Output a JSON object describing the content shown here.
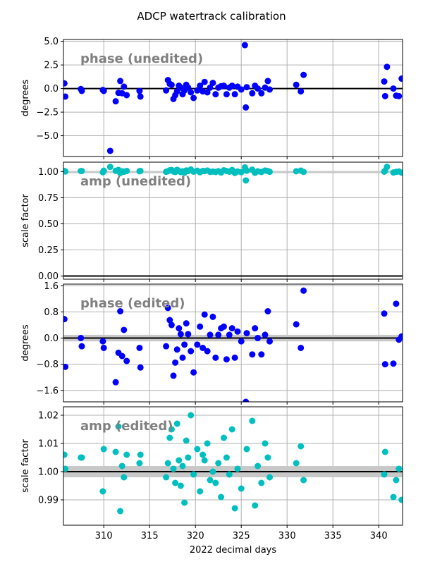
{
  "title": "ADCP watertrack calibration",
  "colors": {
    "phase_points": "#0000ff",
    "amp_points": "#00bfbf",
    "reference_line": "#000000",
    "band": "#c8c8c8",
    "grid": "#b0b0b0",
    "note": "#808080"
  },
  "chart_data": [
    {
      "type": "scatter",
      "annotation": "phase (unedited)",
      "ylabel": "degrees",
      "xlim": [
        305.6,
        342.6
      ],
      "ylim": [
        -7.2,
        5.2
      ],
      "xticks": [
        310,
        315,
        320,
        325,
        330,
        335,
        340
      ],
      "yticks": [
        5.0,
        2.5,
        0.0,
        -2.5,
        -5.0
      ],
      "ytick_labels": [
        "5.0",
        "2.5",
        "0.0",
        "−2.5",
        "−5.0"
      ],
      "grid": true,
      "reference_line": 0.0,
      "band": null,
      "point_color": "phase_points",
      "series": [
        {
          "x": [
            305.7,
            305.8,
            307.5,
            307.6,
            309.9,
            310.0,
            310.7,
            311.3,
            311.6,
            311.8,
            312.0,
            312.2,
            312.5,
            313.9,
            314.0,
            316.8,
            317.0,
            317.2,
            317.4,
            317.6,
            317.8,
            318.0,
            318.2,
            318.4,
            318.6,
            318.8,
            319.0,
            319.2,
            319.5,
            319.8,
            320.2,
            320.5,
            320.8,
            321.0,
            321.3,
            321.6,
            321.9,
            322.2,
            322.5,
            322.8,
            323.1,
            323.4,
            323.7,
            324.0,
            324.3,
            324.6,
            325.0,
            325.4,
            325.5,
            325.6,
            326.2,
            326.5,
            326.8,
            327.2,
            327.6,
            327.9,
            328.1,
            331.0,
            331.5,
            331.8,
            340.6,
            340.7,
            340.9,
            341.6,
            341.9,
            342.2,
            342.5
          ],
          "y": [
            0.55,
            -0.85,
            -0.05,
            -0.25,
            -0.15,
            -0.25,
            -6.6,
            -1.35,
            -0.45,
            0.8,
            -0.5,
            0.2,
            -0.7,
            -0.25,
            -0.85,
            -0.2,
            0.9,
            0.5,
            0.4,
            -1.1,
            -0.7,
            -0.3,
            0.3,
            0.1,
            -0.6,
            -0.2,
            0.4,
            0.1,
            -0.4,
            -1.0,
            -0.2,
            0.3,
            -0.3,
            0.7,
            -0.4,
            0.1,
            0.6,
            -0.6,
            0.1,
            0.25,
            0.3,
            -0.6,
            0.1,
            0.3,
            -0.6,
            0.2,
            -0.1,
            4.6,
            -2.0,
            0.15,
            -0.5,
            0.3,
            0.0,
            -0.5,
            0.1,
            0.8,
            -0.1,
            0.4,
            -0.3,
            1.45,
            0.75,
            -0.8,
            2.3,
            0.0,
            -0.75,
            -0.8,
            1.05
          ]
        }
      ]
    },
    {
      "type": "scatter",
      "annotation": "amp (unedited)",
      "ylabel": "scale factor",
      "xlim": [
        305.6,
        342.6
      ],
      "ylim": [
        -0.03,
        1.09
      ],
      "xticks": [
        310,
        315,
        320,
        325,
        330,
        335,
        340
      ],
      "yticks": [
        1.0,
        0.75,
        0.5,
        0.25,
        0.0
      ],
      "ytick_labels": [
        "1.00",
        "0.75",
        "0.50",
        "0.25",
        "0.00"
      ],
      "grid": true,
      "reference_line": 0.0,
      "band": [
        0.995,
        1.005
      ],
      "point_color": "amp_points",
      "series": [
        {
          "x": [
            305.7,
            305.8,
            307.5,
            307.6,
            309.9,
            310.0,
            310.7,
            311.3,
            311.6,
            311.8,
            312.0,
            312.2,
            312.5,
            313.9,
            314.0,
            316.8,
            317.0,
            317.2,
            317.4,
            317.6,
            317.8,
            318.0,
            318.2,
            318.4,
            318.6,
            318.8,
            319.0,
            319.2,
            319.5,
            319.8,
            320.2,
            320.5,
            320.8,
            321.0,
            321.3,
            321.6,
            321.9,
            322.2,
            322.5,
            322.8,
            323.1,
            323.4,
            323.7,
            324.0,
            324.3,
            324.6,
            325.0,
            325.4,
            325.5,
            325.6,
            326.2,
            326.5,
            326.8,
            327.2,
            327.6,
            327.9,
            328.1,
            331.0,
            331.5,
            331.8,
            340.6,
            340.7,
            340.9,
            341.6,
            341.9,
            342.2,
            342.5
          ],
          "y": [
            1.006,
            1.001,
            1.005,
            1.005,
            0.993,
            1.008,
            1.045,
            1.007,
            1.016,
            0.986,
            1.002,
            0.998,
            1.006,
            1.003,
            1.006,
            0.998,
            1.003,
            1.012,
            1.015,
            1.001,
            0.996,
            1.017,
            1.004,
            0.995,
            1.002,
            0.989,
            1.011,
            1.005,
            1.02,
            0.999,
            1.008,
            0.993,
            1.006,
            1.004,
            1.01,
            0.997,
            1.0,
            0.996,
            1.003,
            0.991,
            1.012,
            1.005,
            0.999,
            1.015,
            0.987,
            1.001,
            0.994,
            1.04,
            0.915,
            1.008,
            1.018,
            0.988,
            1.002,
            0.996,
            1.01,
            1.005,
            0.998,
            1.003,
            1.009,
            0.997,
            0.999,
            1.007,
            1.045,
            0.991,
            0.997,
            1.001,
            0.99
          ]
        }
      ]
    },
    {
      "type": "scatter",
      "annotation": "phase (edited)",
      "ylabel": "degrees",
      "xlim": [
        305.6,
        342.6
      ],
      "ylim": [
        -1.95,
        1.65
      ],
      "xticks": [
        310,
        315,
        320,
        325,
        330,
        335,
        340
      ],
      "yticks": [
        1.6,
        0.8,
        0.0,
        -0.8,
        -1.6
      ],
      "ytick_labels": [
        "1.6",
        "0.8",
        "0.0",
        "−0.8",
        "−1.6"
      ],
      "grid": true,
      "reference_line": 0.0,
      "band": [
        -0.1,
        0.1
      ],
      "point_color": "phase_points",
      "series": [
        {
          "x": [
            305.7,
            305.8,
            307.5,
            307.6,
            309.9,
            310.0,
            311.3,
            311.6,
            311.8,
            312.0,
            312.2,
            312.5,
            313.9,
            314.0,
            316.8,
            317.0,
            317.2,
            317.4,
            317.6,
            317.8,
            318.0,
            318.2,
            318.4,
            318.6,
            318.8,
            319.0,
            319.2,
            319.5,
            319.8,
            320.2,
            320.5,
            320.8,
            321.0,
            321.3,
            321.6,
            321.9,
            322.2,
            322.5,
            322.8,
            323.1,
            323.4,
            323.7,
            324.0,
            324.3,
            324.6,
            325.0,
            325.5,
            325.6,
            326.2,
            326.5,
            326.8,
            327.2,
            327.6,
            327.9,
            328.1,
            331.0,
            331.5,
            331.8,
            340.6,
            340.7,
            341.6,
            341.9,
            342.2,
            342.5
          ],
          "y": [
            0.58,
            -0.88,
            0.0,
            -0.25,
            -0.1,
            -0.3,
            -1.35,
            -0.45,
            0.82,
            -0.55,
            0.25,
            -0.7,
            -0.3,
            -0.9,
            -0.25,
            0.92,
            0.55,
            0.4,
            -1.15,
            -0.75,
            -0.35,
            0.3,
            0.12,
            -0.6,
            -0.2,
            0.45,
            0.12,
            -0.4,
            -1.05,
            -0.2,
            0.35,
            -0.3,
            0.72,
            -0.4,
            0.1,
            0.65,
            -0.6,
            0.1,
            0.3,
            0.35,
            -0.65,
            0.1,
            0.3,
            -0.6,
            0.2,
            -0.1,
            -1.95,
            0.15,
            -0.5,
            0.3,
            0.0,
            -0.5,
            0.1,
            0.82,
            -0.1,
            0.42,
            -0.3,
            1.45,
            0.75,
            -0.8,
            -0.78,
            1.05,
            -0.05,
            0.05
          ]
        }
      ]
    },
    {
      "type": "scatter",
      "annotation": "amp (edited)",
      "ylabel": "scale factor",
      "xlim": [
        305.6,
        342.6
      ],
      "ylim": [
        0.981,
        1.023
      ],
      "xticks": [
        310,
        315,
        320,
        325,
        330,
        335,
        340
      ],
      "xtick_labels": [
        "310",
        "315",
        "320",
        "325",
        "330",
        "335",
        "340"
      ],
      "xlabel": "2022 decimal days",
      "yticks": [
        1.02,
        1.01,
        1.0,
        0.99
      ],
      "ytick_labels": [
        "1.02",
        "1.01",
        "1.00",
        "0.99"
      ],
      "grid": true,
      "reference_line": 1.0,
      "band": [
        0.998,
        1.002
      ],
      "point_color": "amp_points",
      "series": [
        {
          "x": [
            305.7,
            305.8,
            307.5,
            307.6,
            309.9,
            310.0,
            311.3,
            311.6,
            311.8,
            312.0,
            312.2,
            312.5,
            313.9,
            314.0,
            316.8,
            317.0,
            317.2,
            317.4,
            317.6,
            317.8,
            318.0,
            318.2,
            318.4,
            318.6,
            318.8,
            319.0,
            319.2,
            319.5,
            319.8,
            320.2,
            320.5,
            320.8,
            321.0,
            321.3,
            321.6,
            321.9,
            322.2,
            322.5,
            322.8,
            323.1,
            323.4,
            323.7,
            324.0,
            324.3,
            324.6,
            325.0,
            325.6,
            326.2,
            326.5,
            326.8,
            327.2,
            327.6,
            327.9,
            328.1,
            331.0,
            331.5,
            331.8,
            340.6,
            340.7,
            341.6,
            341.9,
            342.2,
            342.5
          ],
          "y": [
            1.006,
            1.001,
            1.005,
            1.005,
            0.993,
            1.008,
            1.007,
            1.016,
            0.986,
            1.002,
            0.998,
            1.006,
            1.003,
            1.006,
            0.998,
            1.003,
            1.012,
            1.015,
            1.001,
            0.996,
            1.017,
            1.004,
            0.995,
            1.002,
            0.989,
            1.011,
            1.005,
            1.02,
            0.999,
            1.008,
            0.993,
            1.006,
            1.004,
            1.01,
            0.997,
            1.0,
            0.996,
            1.003,
            0.991,
            1.012,
            1.005,
            0.999,
            1.015,
            0.987,
            1.001,
            0.994,
            1.008,
            1.018,
            0.988,
            1.002,
            0.996,
            1.01,
            1.005,
            0.998,
            1.003,
            1.009,
            0.997,
            0.999,
            1.007,
            0.991,
            0.997,
            1.001,
            0.99
          ]
        }
      ]
    }
  ]
}
